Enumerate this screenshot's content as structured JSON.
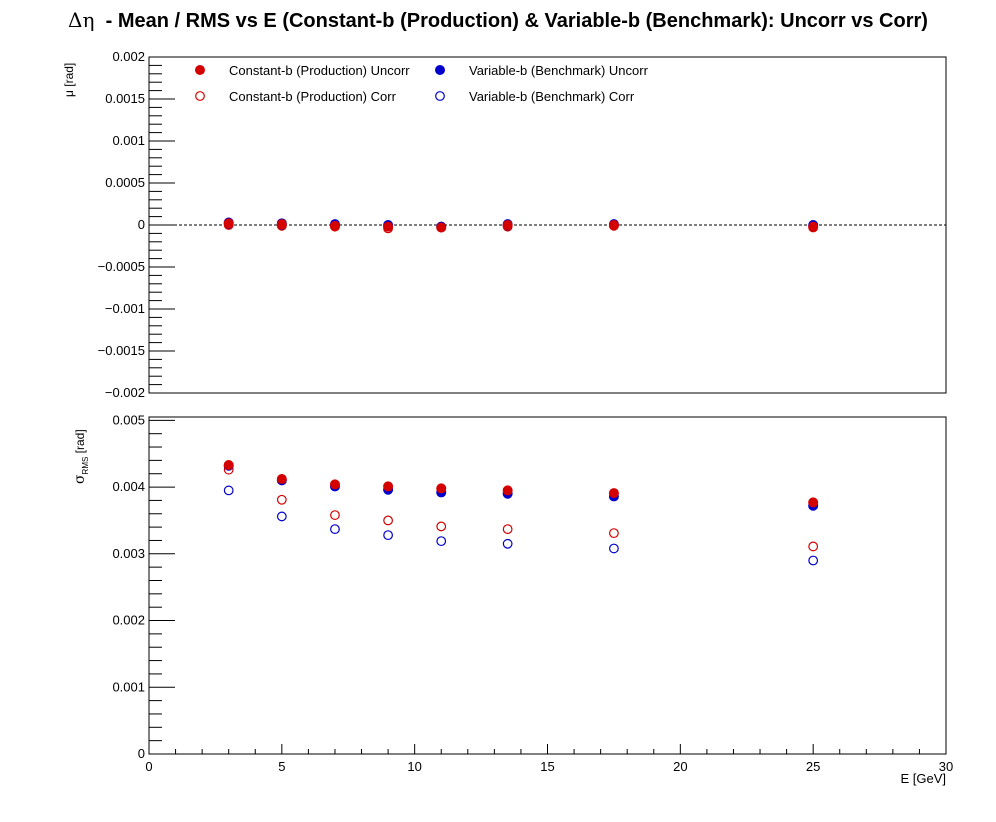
{
  "title": {
    "symbol": "Δη",
    "text": "-  Mean / RMS vs E  (Constant-b (Production) & Variable-b (Benchmark): Uncorr vs Corr)"
  },
  "colors": {
    "red": "#d40000",
    "blue": "#0000cc",
    "axis": "#000000"
  },
  "chart_data": [
    {
      "type": "scatter",
      "name": "mean",
      "ylabel": "μ  [rad]",
      "ylim": [
        -0.002,
        0.002
      ],
      "yticks": [
        -0.002,
        -0.0015,
        -0.001,
        -0.0005,
        0,
        0.0005,
        0.001,
        0.0015,
        0.002
      ],
      "ytick_labels": [
        "−0.002",
        "−0.0015",
        "−0.001",
        "−0.0005",
        "0",
        "0.0005",
        "0.001",
        "0.0015",
        "0.002"
      ],
      "xlim": [
        0,
        30
      ],
      "zero_line": true,
      "legend": {
        "placement": "top-left",
        "entries": [
          {
            "label": "Constant-b (Production) Uncorr",
            "color": "red",
            "filled": true
          },
          {
            "label": "Variable-b (Benchmark) Uncorr",
            "color": "blue",
            "filled": true
          },
          {
            "label": "Constant-b (Production) Corr",
            "color": "red",
            "filled": false
          },
          {
            "label": "Variable-b (Benchmark) Corr",
            "color": "blue",
            "filled": false
          }
        ]
      },
      "x": [
        3,
        5,
        7,
        9,
        11,
        13.5,
        17.5,
        25
      ],
      "series": [
        {
          "name": "Variable-b (Benchmark) Corr",
          "color": "blue",
          "filled": false,
          "values": [
            1e-05,
            0.0,
            -1e-05,
            -2e-05,
            -2e-05,
            -1e-05,
            0.0,
            -1e-05
          ]
        },
        {
          "name": "Constant-b (Production) Corr",
          "color": "red",
          "filled": false,
          "values": [
            0.0,
            -1e-05,
            -2e-05,
            -4e-05,
            -3e-05,
            -2e-05,
            -1e-05,
            -3e-05
          ]
        },
        {
          "name": "Variable-b (Benchmark) Uncorr",
          "color": "blue",
          "filled": true,
          "values": [
            3e-05,
            2e-05,
            1e-05,
            0.0,
            -2e-05,
            1e-05,
            1e-05,
            0.0
          ]
        },
        {
          "name": "Constant-b (Production) Uncorr",
          "color": "red",
          "filled": true,
          "values": [
            2e-05,
            1e-05,
            -1e-05,
            -2e-05,
            -3e-05,
            0.0,
            0.0,
            -2e-05
          ]
        }
      ]
    },
    {
      "type": "scatter",
      "name": "rms",
      "ylabel": "σ",
      "ylabel_sub": "RMS",
      "ylabel_unit": "[rad]",
      "ylim": [
        0,
        0.00505
      ],
      "yticks": [
        0,
        0.001,
        0.002,
        0.003,
        0.004,
        0.005
      ],
      "ytick_labels": [
        "0",
        "0.001",
        "0.002",
        "0.003",
        "0.004",
        "0.005"
      ],
      "xlim": [
        0,
        30
      ],
      "xticks": [
        0,
        5,
        10,
        15,
        20,
        25,
        30
      ],
      "xtick_labels": [
        "0",
        "5",
        "10",
        "15",
        "20",
        "25",
        "30"
      ],
      "xlabel": "E  [GeV]",
      "x": [
        3,
        5,
        7,
        9,
        11,
        13.5,
        17.5,
        25
      ],
      "series": [
        {
          "name": "Variable-b (Benchmark) Corr",
          "color": "blue",
          "filled": false,
          "values": [
            0.00395,
            0.00356,
            0.00337,
            0.00328,
            0.00319,
            0.00315,
            0.00308,
            0.0029
          ]
        },
        {
          "name": "Constant-b (Production) Corr",
          "color": "red",
          "filled": false,
          "values": [
            0.00426,
            0.00381,
            0.00358,
            0.0035,
            0.00341,
            0.00337,
            0.00331,
            0.00311
          ]
        },
        {
          "name": "Variable-b (Benchmark) Uncorr",
          "color": "blue",
          "filled": true,
          "values": [
            0.00432,
            0.0041,
            0.00401,
            0.00396,
            0.00392,
            0.0039,
            0.00386,
            0.00372
          ]
        },
        {
          "name": "Constant-b (Production) Uncorr",
          "color": "red",
          "filled": true,
          "values": [
            0.00433,
            0.00412,
            0.00404,
            0.00401,
            0.00398,
            0.00395,
            0.00391,
            0.00377
          ]
        }
      ]
    }
  ]
}
